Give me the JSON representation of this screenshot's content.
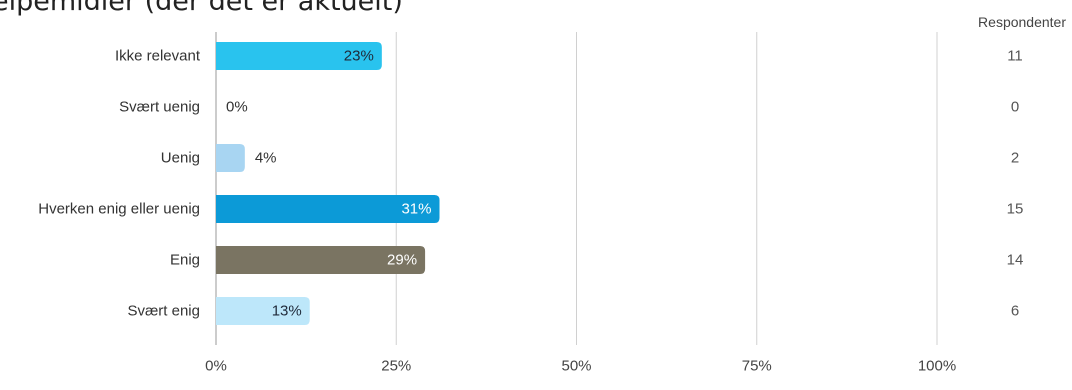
{
  "title": "elpemidler (der det er aktuelt)",
  "respondents_header": "Respondenter",
  "chart_data": {
    "type": "bar",
    "orientation": "horizontal",
    "categories": [
      "Ikke relevant",
      "Svært uenig",
      "Uenig",
      "Hverken enig eller uenig",
      "Enig",
      "Svært enig"
    ],
    "values": [
      23,
      0,
      4,
      31,
      29,
      13
    ],
    "value_labels": [
      "23%",
      "0%",
      "4%",
      "31%",
      "29%",
      "13%"
    ],
    "respondents": [
      11,
      0,
      2,
      15,
      14,
      6
    ],
    "colors": [
      "#29c3ee",
      "#29c3ee",
      "#a8d5f2",
      "#0c9ad7",
      "#7a7462",
      "#bde7fa"
    ],
    "label_colors": [
      "#1f2a3a",
      "#333333",
      "#333333",
      "#ffffff",
      "#ffffff",
      "#1f2a3a"
    ],
    "xlim": [
      0,
      100
    ],
    "xticks": [
      0,
      25,
      50,
      75,
      100
    ],
    "xtick_labels": [
      "0%",
      "25%",
      "50%",
      "75%",
      "100%"
    ],
    "grid": true
  }
}
